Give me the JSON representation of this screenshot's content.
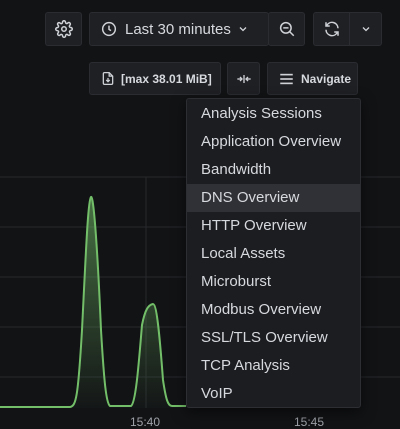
{
  "toolbar": {
    "time_range_label": "Last 30 minutes",
    "max_label": "[max 38.01 MiB]",
    "navigate_label": "Navigate"
  },
  "icons": {
    "settings": "gear-icon",
    "time": "clock-icon",
    "time_dropdown": "chevron-down-icon",
    "zoom_out": "zoom-out-icon",
    "refresh": "refresh-icon",
    "refresh_dropdown": "chevron-down-icon",
    "download": "file-download-icon",
    "collapse": "collapse-horizontal-icon",
    "navigate": "hamburger-menu-icon"
  },
  "chart": {
    "x_ticks": [
      "15:40",
      "15:45"
    ]
  },
  "navigate_menu": {
    "selected_index": 3,
    "items": [
      "Analysis Sessions",
      "Application Overview",
      "Bandwidth",
      "DNS Overview",
      "HTTP Overview",
      "Local Assets",
      "Microburst",
      "Modbus Overview",
      "SSL/TLS Overview",
      "TCP Analysis",
      "VoIP"
    ]
  },
  "colors": {
    "background": "#121315",
    "series_line": "#73bf69",
    "series_fill": "#5a9a55",
    "menu_background": "#1c1d21",
    "menu_selected": "#303136"
  }
}
